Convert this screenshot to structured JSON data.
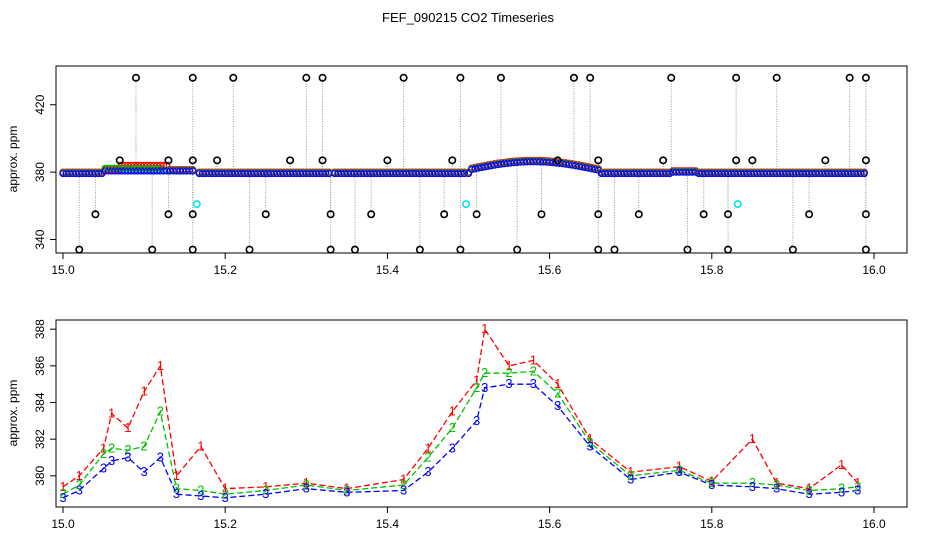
{
  "figure": {
    "title": "FEF_090215  CO2 Timeseries",
    "colors": {
      "series_1": "#ff0000",
      "series_2": "#00c000",
      "series_3": "#0000ff",
      "outlier": "#000000",
      "flag": "#00e5ee",
      "connector": "#999999"
    }
  },
  "chart_data": [
    {
      "type": "scatter",
      "ylabel": "approx. ppm",
      "xlim": [
        15.0,
        16.0
      ],
      "ylim": [
        332,
        443
      ],
      "xticks": [
        "15.0",
        "15.2",
        "15.4",
        "15.6",
        "15.8",
        "16.0"
      ],
      "yticks": [
        "340",
        "380",
        "420"
      ],
      "ytick_values": [
        340,
        380,
        420
      ],
      "grid": false,
      "outliers_high_y": 436,
      "outliers_high_x": [
        15.09,
        15.16,
        15.21,
        15.3,
        15.32,
        15.42,
        15.49,
        15.54,
        15.63,
        15.65,
        15.75,
        15.83,
        15.88,
        15.97,
        15.99
      ],
      "outliers_low_y": 334,
      "outliers_low_x": [
        15.02,
        15.11,
        15.16,
        15.23,
        15.33,
        15.36,
        15.44,
        15.49,
        15.56,
        15.66,
        15.68,
        15.77,
        15.82,
        15.9,
        15.99
      ],
      "outliers_mid_low_y": 355,
      "outliers_mid_low_x": [
        15.04,
        15.13,
        15.16,
        15.25,
        15.33,
        15.38,
        15.47,
        15.51,
        15.59,
        15.66,
        15.71,
        15.79,
        15.82,
        15.92,
        15.99
      ],
      "outliers_mid_high_y": 387,
      "outliers_mid_high_x": [
        15.07,
        15.13,
        15.16,
        15.19,
        15.28,
        15.32,
        15.4,
        15.48,
        15.61,
        15.66,
        15.74,
        15.83,
        15.85,
        15.94,
        15.99
      ],
      "flags": [
        {
          "x": 15.165,
          "y": 361
        },
        {
          "x": 15.497,
          "y": 361
        },
        {
          "x": 15.832,
          "y": 361
        }
      ]
    },
    {
      "type": "line",
      "ylabel": "approx. ppm",
      "xlim": [
        15.0,
        16.0
      ],
      "ylim": [
        378.3,
        388.5
      ],
      "xticks": [
        "15.0",
        "15.2",
        "15.4",
        "15.6",
        "15.8",
        "16.0"
      ],
      "yticks": [
        "380",
        "382",
        "384",
        "386",
        "388"
      ],
      "ytick_values": [
        380,
        382,
        384,
        386,
        388
      ],
      "grid": false,
      "series": [
        {
          "name": "1",
          "color": "#ff0000",
          "x": [
            15.0,
            15.02,
            15.05,
            15.06,
            15.08,
            15.1,
            15.12,
            15.14,
            15.17,
            15.2,
            15.25,
            15.3,
            15.35,
            15.42,
            15.45,
            15.48,
            15.51,
            15.52,
            15.55,
            15.58,
            15.61,
            15.65,
            15.7,
            15.76,
            15.8,
            15.85,
            15.88,
            15.92,
            15.96,
            15.98
          ],
          "y": [
            379.4,
            380.0,
            381.5,
            383.4,
            382.6,
            384.6,
            386.0,
            380.0,
            381.6,
            379.3,
            379.4,
            379.6,
            379.3,
            379.8,
            381.5,
            383.5,
            385.2,
            388.0,
            386.0,
            386.3,
            385.0,
            382.0,
            380.2,
            380.5,
            379.7,
            382.0,
            379.6,
            379.3,
            380.6,
            379.6
          ]
        },
        {
          "name": "2",
          "color": "#00c000",
          "x": [
            15.0,
            15.02,
            15.05,
            15.06,
            15.08,
            15.1,
            15.12,
            15.14,
            15.17,
            15.2,
            15.25,
            15.3,
            15.35,
            15.42,
            15.45,
            15.48,
            15.51,
            15.52,
            15.55,
            15.58,
            15.61,
            15.65,
            15.7,
            15.76,
            15.8,
            15.85,
            15.88,
            15.92,
            15.96,
            15.98
          ],
          "y": [
            379.0,
            379.5,
            381.2,
            381.5,
            381.4,
            381.6,
            383.5,
            379.3,
            379.2,
            379.0,
            379.2,
            379.5,
            379.2,
            379.5,
            381.0,
            382.6,
            384.8,
            385.6,
            385.6,
            385.7,
            384.5,
            381.8,
            380.0,
            380.3,
            379.6,
            379.6,
            379.5,
            379.2,
            379.3,
            379.4
          ]
        },
        {
          "name": "3",
          "color": "#0000ff",
          "x": [
            15.0,
            15.02,
            15.05,
            15.06,
            15.08,
            15.1,
            15.12,
            15.14,
            15.17,
            15.2,
            15.25,
            15.3,
            15.35,
            15.42,
            15.45,
            15.48,
            15.51,
            15.52,
            15.55,
            15.58,
            15.61,
            15.65,
            15.7,
            15.76,
            15.8,
            15.85,
            15.88,
            15.92,
            15.96,
            15.98
          ],
          "y": [
            378.8,
            379.2,
            380.4,
            380.8,
            381.0,
            380.2,
            381.0,
            379.0,
            378.9,
            378.8,
            379.0,
            379.3,
            379.1,
            379.2,
            380.2,
            381.5,
            383.0,
            384.8,
            385.0,
            385.0,
            383.8,
            381.6,
            379.8,
            380.2,
            379.5,
            379.4,
            379.3,
            379.0,
            379.1,
            379.2
          ]
        }
      ]
    }
  ]
}
